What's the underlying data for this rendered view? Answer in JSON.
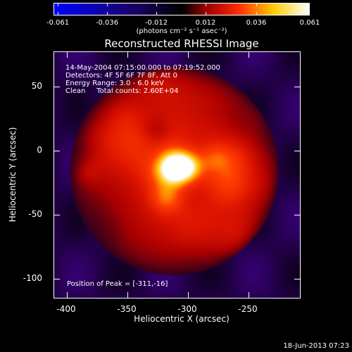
{
  "colorbar": {
    "ticks": [
      "-0.061",
      "-0.036",
      "-0.012",
      "0.012",
      "0.036",
      "0.061"
    ],
    "units": "(photons cm⁻² s⁻¹ asec⁻²)",
    "colors": [
      "#0000ff",
      "#000000",
      "#ff0000",
      "#ffff00",
      "#ffffff"
    ]
  },
  "plot": {
    "title": "Reconstructed RHESSI Image",
    "info": {
      "line1": "14-May-2004 07:15:00.000 to 07:19:52.000",
      "line2": "Detectors: 4F 5F 6F 7F 8F, Att 0",
      "line3": "Energy Range: 3.0 - 6.0 keV",
      "line4": "Clean     Total counts: 2.60E+04"
    },
    "peak_label": "Position of Peak = [-311,-16]"
  },
  "axes": {
    "x_title": "Heliocentric X (arcsec)",
    "y_title": "Heliocentric Y (arcsec)",
    "x_ticks": [
      "-400",
      "-350",
      "-300",
      "-250"
    ],
    "y_ticks": [
      "50",
      "0",
      "-50",
      "-100"
    ]
  },
  "footer": {
    "timestamp": "18-Jun-2013 07:23"
  }
}
